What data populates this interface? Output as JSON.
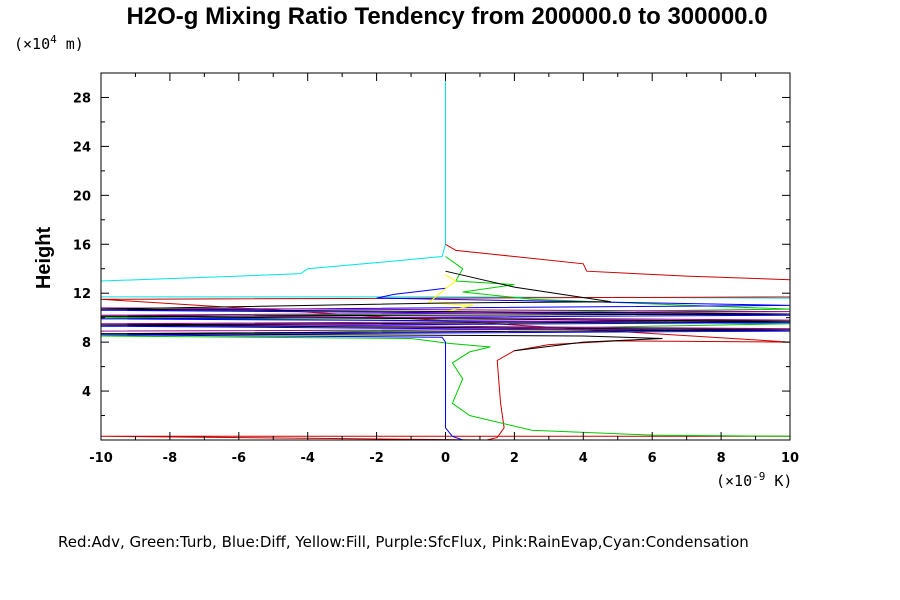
{
  "chart_data": {
    "type": "line",
    "title": "H2O-g Mixing Ratio Tendency from 200000.0 to 300000.0",
    "ylabel": "Height",
    "y_units_prefix": "(×10",
    "y_units_exp": "4",
    "y_units_suffix": " m)",
    "x_units_prefix": "(×10",
    "x_units_exp": "-9",
    "x_units_suffix": " K)",
    "xlim": [
      -10,
      10
    ],
    "ylim": [
      0,
      30
    ],
    "x_ticks": [
      -10,
      -8,
      -6,
      -4,
      -2,
      0,
      2,
      4,
      6,
      8,
      10
    ],
    "y_ticks": [
      4,
      8,
      12,
      16,
      20,
      24,
      28
    ],
    "x_tick_labels": [
      "-10",
      "-8",
      "-6",
      "-4",
      "-2",
      "0",
      "2",
      "4",
      "6",
      "8",
      "10"
    ],
    "y_tick_labels": [
      "4",
      "8",
      "12",
      "16",
      "20",
      "24",
      "28"
    ],
    "legend_text": "Red:Adv, Green:Turb, Blue:Diff, Yellow:Fill, Purple:SfcFlux, Pink:RainEvap,Cyan:Condensation",
    "colors": {
      "adv": "#cc0000",
      "turb": "#00cc00",
      "diff": "#0000ff",
      "fill": "#ffff00",
      "sfcflux": "#990099",
      "rainevap": "#ff66cc",
      "cond": "#00e5e5",
      "total": "#000000"
    },
    "series": [
      {
        "key": "cond",
        "points": [
          [
            0,
            30
          ],
          [
            0,
            16
          ],
          [
            -0.1,
            15
          ],
          [
            -2,
            14.5
          ],
          [
            -4,
            14
          ],
          [
            -4.2,
            13.6
          ],
          [
            -6,
            13.4
          ],
          [
            -10,
            13
          ],
          [
            -10,
            11.7
          ],
          [
            0,
            11.7
          ],
          [
            10,
            11.6
          ]
        ]
      },
      {
        "key": "adv",
        "points": [
          [
            0,
            16
          ],
          [
            0.3,
            15.5
          ],
          [
            2,
            15
          ],
          [
            4,
            14.4
          ],
          [
            4.1,
            13.8
          ],
          [
            7,
            13.4
          ],
          [
            10,
            13.1
          ],
          [
            10,
            11.7
          ],
          [
            -10,
            11.5
          ],
          [
            10,
            8
          ],
          [
            5,
            8.1
          ],
          [
            3,
            7.8
          ],
          [
            2,
            7.3
          ],
          [
            1.5,
            6.5
          ],
          [
            1.6,
            3
          ],
          [
            1.7,
            1
          ],
          [
            1.5,
            0.2
          ],
          [
            1.2,
            0
          ],
          [
            -10,
            0.3
          ],
          [
            10,
            0.3
          ]
        ]
      },
      {
        "key": "turb",
        "points": [
          [
            0,
            15
          ],
          [
            0.5,
            14
          ],
          [
            0.3,
            13
          ],
          [
            2,
            12.7
          ],
          [
            0.5,
            12.1
          ],
          [
            2.5,
            11.5
          ],
          [
            10,
            10.7
          ],
          [
            -10,
            10
          ],
          [
            10,
            9.5
          ],
          [
            -10,
            8.5
          ],
          [
            -1,
            8.3
          ],
          [
            0.1,
            7.9
          ],
          [
            1.3,
            7.6
          ],
          [
            0.7,
            7.2
          ],
          [
            0.2,
            6.3
          ],
          [
            0.5,
            5
          ],
          [
            0.2,
            3
          ],
          [
            0.7,
            2
          ],
          [
            2.5,
            0.8
          ],
          [
            6,
            0.4
          ],
          [
            10,
            0.3
          ]
        ]
      },
      {
        "key": "diff",
        "points": [
          [
            0,
            12.4
          ],
          [
            -1.5,
            11.9
          ],
          [
            -2,
            11.6
          ],
          [
            10,
            11
          ],
          [
            -10,
            10.6
          ],
          [
            10,
            10.2
          ],
          [
            -10,
            9.9
          ],
          [
            10,
            9.6
          ],
          [
            -10,
            9.3
          ],
          [
            10,
            8.9
          ],
          [
            -10,
            8.6
          ],
          [
            -0.1,
            8.4
          ],
          [
            0,
            8
          ],
          [
            0,
            1
          ],
          [
            0.2,
            0.3
          ],
          [
            0.5,
            0
          ],
          [
            -0.5,
            0
          ]
        ]
      },
      {
        "key": "sfcflux",
        "points": [
          [
            -10,
            10.8
          ],
          [
            10,
            10.5
          ],
          [
            -10,
            10.2
          ],
          [
            10,
            9.8
          ],
          [
            -10,
            9.5
          ],
          [
            10,
            9.1
          ],
          [
            -10,
            8.9
          ]
        ]
      },
      {
        "key": "fill",
        "points": [
          [
            0,
            13.5
          ],
          [
            0.3,
            13
          ],
          [
            0.1,
            12.6
          ],
          [
            -0.5,
            11.2
          ],
          [
            0.8,
            11
          ],
          [
            0,
            10.5
          ]
        ]
      },
      {
        "key": "total",
        "points": [
          [
            0,
            13.8
          ],
          [
            2,
            12.5
          ],
          [
            4.8,
            11.3
          ],
          [
            0,
            11.2
          ],
          [
            -10,
            10.7
          ],
          [
            10,
            10.3
          ],
          [
            -10,
            10.1
          ],
          [
            10,
            9.7
          ],
          [
            -10,
            9.4
          ],
          [
            10,
            9.0
          ],
          [
            -10,
            8.7
          ],
          [
            4,
            8.5
          ],
          [
            6.3,
            8.3
          ],
          [
            4,
            8.0
          ],
          [
            2,
            7.3
          ]
        ]
      }
    ]
  }
}
